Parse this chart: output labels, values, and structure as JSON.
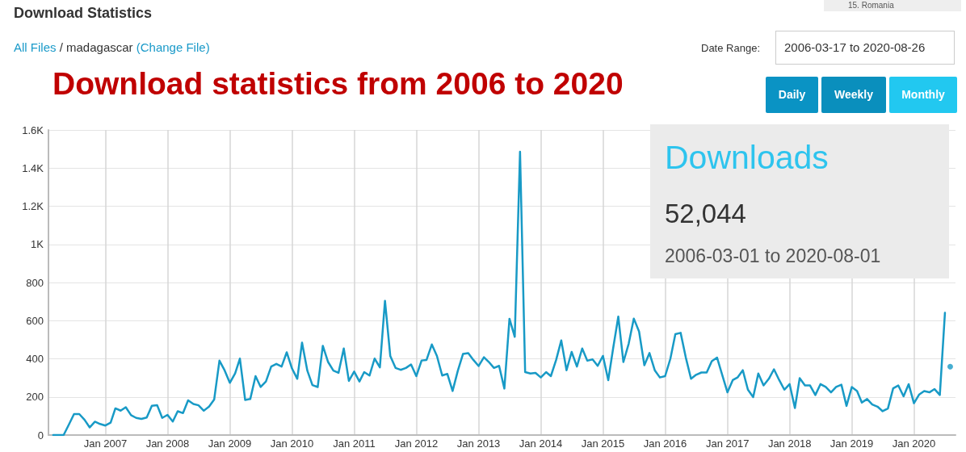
{
  "chart_data": {
    "type": "line",
    "title": "Download statistics from 2006 to 2020",
    "subtitle": "Download Statistics",
    "annotations": [
      "All Files",
      "/ madagascar",
      "(Change File)",
      "Date Range:",
      "2006-03-17 to 2020-08-26",
      "Daily",
      "Weekly",
      "Monthly",
      "Downloads",
      "52,044",
      "2006-03-01 to 2020-08-01",
      "15.  Romania"
    ],
    "xlim": [
      "2006-02",
      "2020-09"
    ],
    "xticks": [
      {
        "value": "2007-01",
        "label": "Jan 2007"
      },
      {
        "value": "2008-01",
        "label": "Jan 2008"
      },
      {
        "value": "2009-01",
        "label": "Jan 2009"
      },
      {
        "value": "2010-01",
        "label": "Jan 2010"
      },
      {
        "value": "2011-01",
        "label": "Jan 2011"
      },
      {
        "value": "2012-01",
        "label": "Jan 2012"
      },
      {
        "value": "2013-01",
        "label": "Jan 2013"
      },
      {
        "value": "2014-01",
        "label": "Jan 2014"
      },
      {
        "value": "2015-01",
        "label": "Jan 2015"
      },
      {
        "value": "2016-01",
        "label": "Jan 2016"
      },
      {
        "value": "2017-01",
        "label": "Jan 2017"
      },
      {
        "value": "2018-01",
        "label": "Jan 2018"
      },
      {
        "value": "2019-01",
        "label": "Jan 2019"
      },
      {
        "value": "2020-01",
        "label": "Jan 2020"
      }
    ],
    "ylim": [
      0,
      1600
    ],
    "yticks": [
      0,
      200,
      400,
      600,
      800,
      {
        "value": 1000,
        "label": "1K"
      },
      {
        "value": 1200,
        "label": "1.2K"
      },
      {
        "value": 1400,
        "label": "1.4K"
      },
      {
        "value": 1600,
        "label": "1.6K"
      }
    ],
    "grid": true,
    "line_style": "solid",
    "series": [
      {
        "color": "#189ac6",
        "x": [
          "2006-03",
          "2006-04",
          "2006-05",
          "2006-06",
          "2006-07",
          "2006-08",
          "2006-09",
          "2006-10",
          "2006-11",
          "2006-12",
          "2007-01",
          "2007-02",
          "2007-03",
          "2007-04",
          "2007-05",
          "2007-06",
          "2007-07",
          "2007-08",
          "2007-09",
          "2007-10",
          "2007-11",
          "2007-12",
          "2008-01",
          "2008-02",
          "2008-03",
          "2008-04",
          "2008-05",
          "2008-06",
          "2008-07",
          "2008-08",
          "2008-09",
          "2008-10",
          "2008-11",
          "2008-12",
          "2009-01",
          "2009-02",
          "2009-03",
          "2009-04",
          "2009-05",
          "2009-06",
          "2009-07",
          "2009-08",
          "2009-09",
          "2009-10",
          "2009-11",
          "2009-12",
          "2010-01",
          "2010-02",
          "2010-03",
          "2010-04",
          "2010-05",
          "2010-06",
          "2010-07",
          "2010-08",
          "2010-09",
          "2010-10",
          "2010-11",
          "2010-12",
          "2011-01",
          "2011-02",
          "2011-03",
          "2011-04",
          "2011-05",
          "2011-06",
          "2011-07",
          "2011-08",
          "2011-09",
          "2011-10",
          "2011-11",
          "2011-12",
          "2012-01",
          "2012-02",
          "2012-03",
          "2012-04",
          "2012-05",
          "2012-06",
          "2012-07",
          "2012-08",
          "2012-09",
          "2012-10",
          "2012-11",
          "2012-12",
          "2013-01",
          "2013-02",
          "2013-03",
          "2013-04",
          "2013-05",
          "2013-06",
          "2013-07",
          "2013-08",
          "2013-09",
          "2013-10",
          "2013-11",
          "2013-12",
          "2014-01",
          "2014-02",
          "2014-03",
          "2014-04",
          "2014-05",
          "2014-06",
          "2014-07",
          "2014-08",
          "2014-09",
          "2014-10",
          "2014-11",
          "2014-12",
          "2015-01",
          "2015-02",
          "2015-03",
          "2015-04",
          "2015-05",
          "2015-06",
          "2015-07",
          "2015-08",
          "2015-09",
          "2015-10",
          "2015-11",
          "2015-12",
          "2016-01",
          "2016-02",
          "2016-03",
          "2016-04",
          "2016-05",
          "2016-06",
          "2016-07",
          "2016-08",
          "2016-09",
          "2016-10",
          "2016-11",
          "2016-12",
          "2017-01",
          "2017-02",
          "2017-03",
          "2017-04",
          "2017-05",
          "2017-06",
          "2017-07",
          "2017-08",
          "2017-09",
          "2017-10",
          "2017-11",
          "2017-12",
          "2018-01",
          "2018-02",
          "2018-03",
          "2018-04",
          "2018-05",
          "2018-06",
          "2018-07",
          "2018-08",
          "2018-09",
          "2018-10",
          "2018-11",
          "2018-12",
          "2019-01",
          "2019-02",
          "2019-03",
          "2019-04",
          "2019-05",
          "2019-06",
          "2019-07",
          "2019-08",
          "2019-09",
          "2019-10",
          "2019-11",
          "2019-12",
          "2020-01",
          "2020-02",
          "2020-03",
          "2020-04",
          "2020-05",
          "2020-06",
          "2020-07"
        ],
        "values": [
          0,
          0,
          0,
          55,
          110,
          110,
          80,
          40,
          70,
          58,
          50,
          65,
          140,
          128,
          146,
          104,
          90,
          85,
          92,
          153,
          157,
          90,
          106,
          71,
          125,
          115,
          182,
          163,
          156,
          128,
          149,
          186,
          390,
          340,
          274,
          323,
          401,
          184,
          189,
          309,
          252,
          281,
          359,
          373,
          359,
          434,
          349,
          295,
          485,
          338,
          262,
          252,
          468,
          383,
          338,
          326,
          454,
          284,
          333,
          281,
          330,
          312,
          401,
          355,
          704,
          415,
          352,
          342,
          352,
          370,
          309,
          391,
          394,
          475,
          415,
          312,
          321,
          231,
          338,
          425,
          430,
          394,
          362,
          408,
          384,
          352,
          363,
          244,
          610,
          515,
          1486,
          330,
          323,
          326,
          302,
          330,
          309,
          394,
          496,
          340,
          436,
          359,
          454,
          390,
          397,
          363,
          415,
          288,
          451,
          621,
          383,
          479,
          611,
          543,
          366,
          430,
          340,
          302,
          309,
          401,
          529,
          536,
          408,
          295,
          316,
          328,
          328,
          387,
          406,
          316,
          224,
          288,
          302,
          340,
          238,
          199,
          323,
          260,
          295,
          345,
          288,
          238,
          267,
          142,
          298,
          260,
          260,
          210,
          267,
          252,
          224,
          252,
          264,
          153,
          252,
          231,
          170,
          189,
          160,
          149,
          125,
          139,
          245,
          260,
          203,
          267,
          167,
          213,
          231,
          224,
          241,
          210,
          641
        ]
      },
      {
        "type": "scatter",
        "color": "#189ac6",
        "marker": "circle",
        "x": [
          "2020-08"
        ],
        "values": [
          359
        ]
      }
    ]
  }
}
